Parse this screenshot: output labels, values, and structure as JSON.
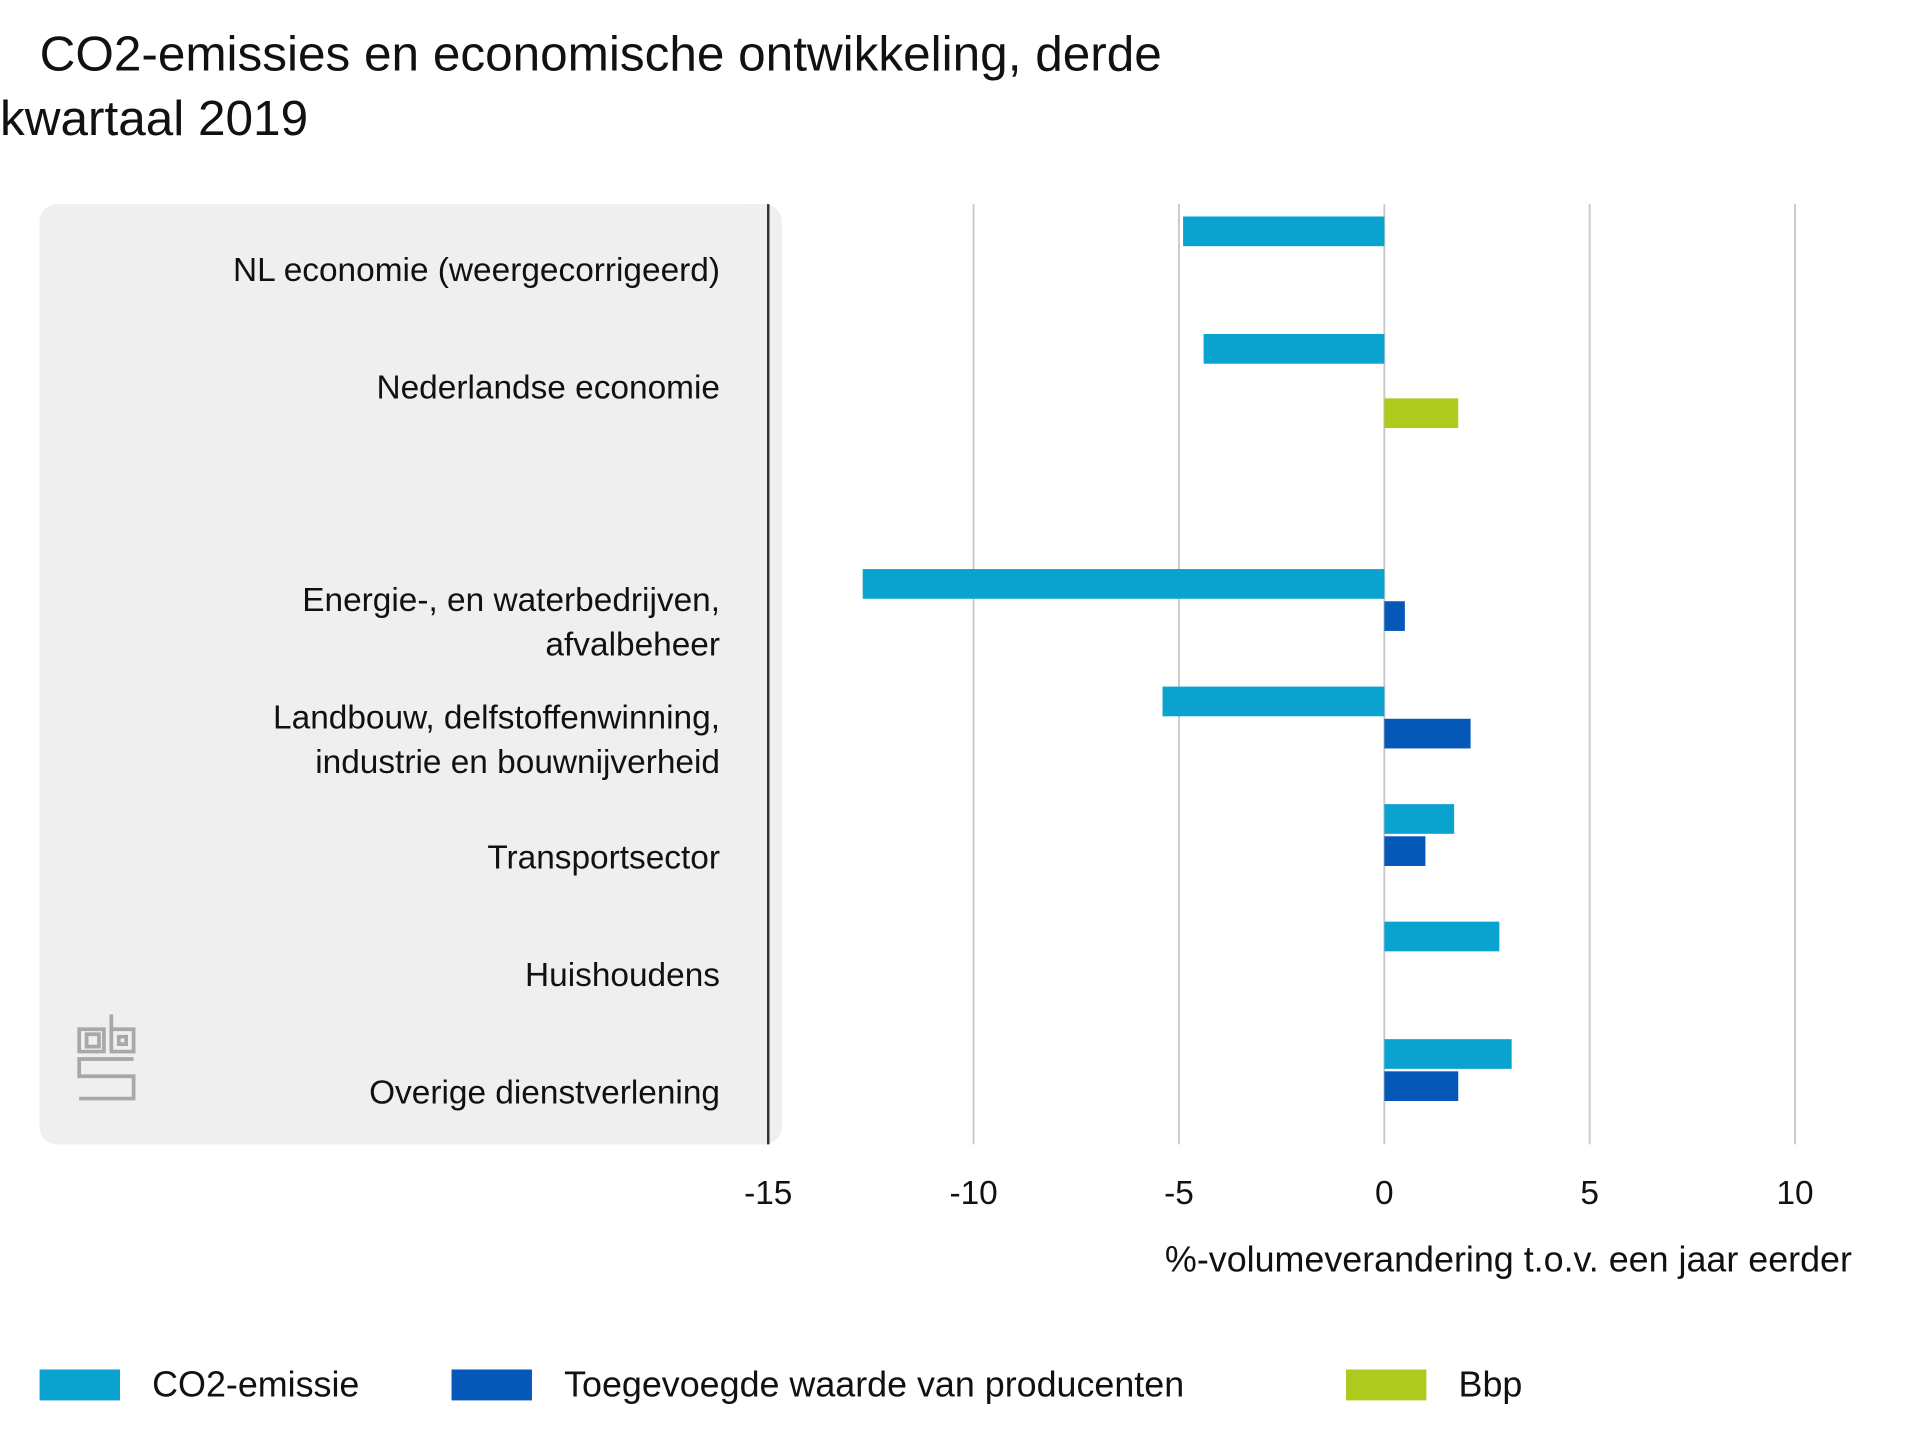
{
  "chart_data": {
    "type": "hbar",
    "title": "CO2-emissies en economische ontwikkeling, derde\nkwartaal 2019",
    "x_label": "%-volumeverandering t.o.v. een jaar eerder",
    "categories": [
      "NL economie (weergecorrigeerd)",
      "Nederlandse economie",
      null,
      "Energie-, en waterbedrijven,\nafvalbeheer",
      "Landbouw, delfstoffenwinning,\nindustrie en bouwnijverheid",
      "Transportsector",
      "Huishoudens",
      "Overige dienstverlening"
    ],
    "series": [
      {
        "name": "CO2-emissie",
        "color": "#0aa3d0",
        "values": [
          -4.9,
          -4.4,
          null,
          -12.7,
          -5.4,
          1.7,
          2.8,
          3.1
        ]
      },
      {
        "name": "Toegevoegde waarde van producenten",
        "color": "#0558b8",
        "values": [
          null,
          null,
          null,
          0.5,
          2.1,
          1.0,
          null,
          1.8
        ]
      },
      {
        "name": "Bbp",
        "color": "#afca1e",
        "values": [
          null,
          1.8,
          null,
          null,
          null,
          null,
          null,
          null
        ]
      }
    ],
    "xlim": [
      -15,
      10
    ],
    "xticks": [
      -15,
      -10,
      -5,
      0,
      5,
      10
    ],
    "grid": true
  }
}
